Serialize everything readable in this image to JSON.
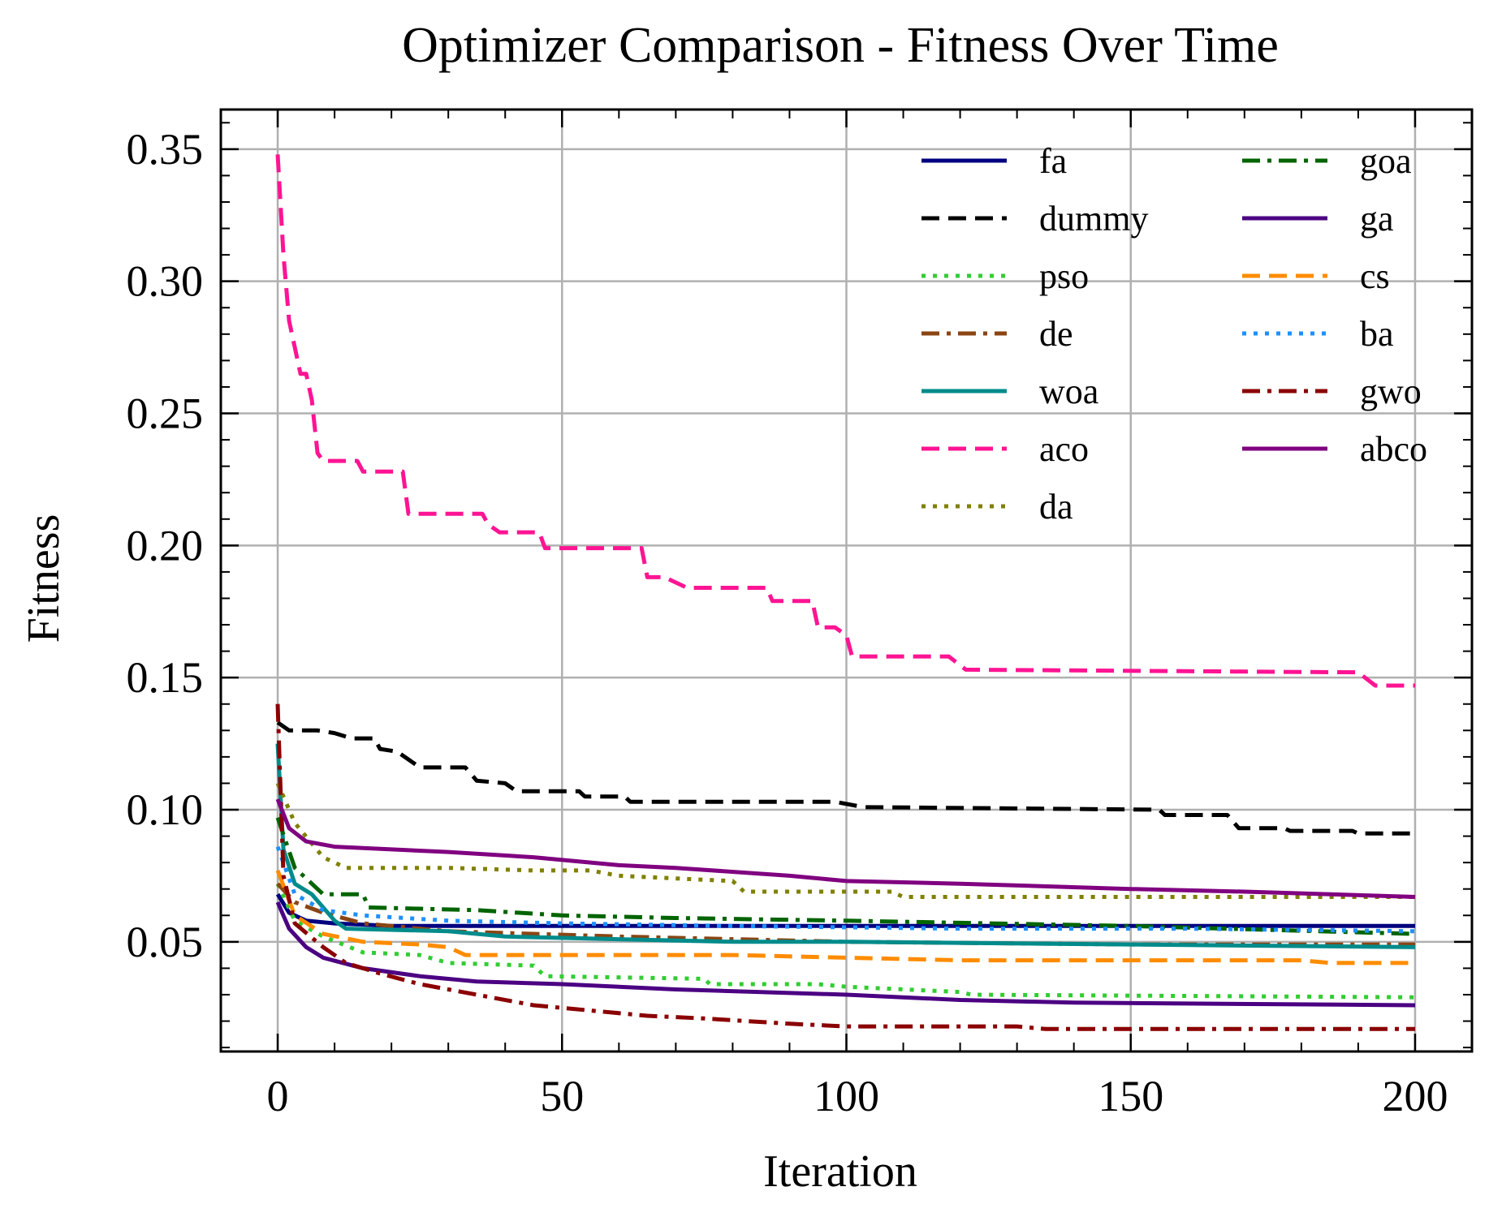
{
  "chart_data": {
    "type": "line",
    "title": "Optimizer Comparison - Fitness Over Time",
    "xlabel": "Iteration",
    "ylabel": "Fitness",
    "xlim": [
      -10,
      210
    ],
    "ylim": [
      0.0085,
      0.365
    ],
    "xticks": [
      0,
      50,
      100,
      150,
      200
    ],
    "xtick_labels": [
      "0",
      "50",
      "100",
      "150",
      "200"
    ],
    "yticks": [
      0.05,
      0.1,
      0.15,
      0.2,
      0.25,
      0.3,
      0.35
    ],
    "ytick_labels": [
      "0.05",
      "0.10",
      "0.15",
      "0.20",
      "0.25",
      "0.30",
      "0.35"
    ],
    "grid": true,
    "legend": {
      "position": "top-right",
      "columns": 2
    },
    "series": [
      {
        "name": "fa",
        "color": "#000080",
        "dash": "solid",
        "points": [
          [
            0,
            0.068
          ],
          [
            2,
            0.061
          ],
          [
            5,
            0.058
          ],
          [
            10,
            0.057
          ],
          [
            20,
            0.056
          ],
          [
            200,
            0.056
          ]
        ]
      },
      {
        "name": "dummy",
        "color": "#000000",
        "dash": "dashed",
        "points": [
          [
            0,
            0.133
          ],
          [
            2,
            0.13
          ],
          [
            7,
            0.13
          ],
          [
            10,
            0.129
          ],
          [
            13,
            0.127
          ],
          [
            17,
            0.127
          ],
          [
            18,
            0.123
          ],
          [
            21,
            0.122
          ],
          [
            23,
            0.119
          ],
          [
            25,
            0.116
          ],
          [
            33,
            0.116
          ],
          [
            35,
            0.111
          ],
          [
            40,
            0.11
          ],
          [
            42,
            0.107
          ],
          [
            53,
            0.107
          ],
          [
            54,
            0.105
          ],
          [
            61,
            0.105
          ],
          [
            62,
            0.103
          ],
          [
            98,
            0.103
          ],
          [
            103,
            0.101
          ],
          [
            155,
            0.1
          ],
          [
            156,
            0.098
          ],
          [
            167,
            0.098
          ],
          [
            169,
            0.093
          ],
          [
            177,
            0.093
          ],
          [
            178,
            0.092
          ],
          [
            189,
            0.092
          ],
          [
            190,
            0.091
          ],
          [
            200,
            0.091
          ]
        ]
      },
      {
        "name": "pso",
        "color": "#32cd32",
        "dash": "dotted",
        "points": [
          [
            0,
            0.072
          ],
          [
            3,
            0.058
          ],
          [
            8,
            0.052
          ],
          [
            15,
            0.046
          ],
          [
            25,
            0.045
          ],
          [
            30,
            0.042
          ],
          [
            45,
            0.041
          ],
          [
            47,
            0.037
          ],
          [
            75,
            0.036
          ],
          [
            76,
            0.034
          ],
          [
            95,
            0.034
          ],
          [
            100,
            0.033
          ],
          [
            120,
            0.031
          ],
          [
            122,
            0.03
          ],
          [
            200,
            0.029
          ]
        ]
      },
      {
        "name": "de",
        "color": "#8b4513",
        "dash": "dashdot",
        "points": [
          [
            0,
            0.072
          ],
          [
            3,
            0.065
          ],
          [
            8,
            0.061
          ],
          [
            15,
            0.057
          ],
          [
            30,
            0.054
          ],
          [
            60,
            0.052
          ],
          [
            100,
            0.05
          ],
          [
            150,
            0.049
          ],
          [
            200,
            0.049
          ]
        ]
      },
      {
        "name": "woa",
        "color": "#008b8b",
        "dash": "solid",
        "points": [
          [
            0,
            0.125
          ],
          [
            1,
            0.085
          ],
          [
            3,
            0.072
          ],
          [
            6,
            0.068
          ],
          [
            10,
            0.058
          ],
          [
            12,
            0.055
          ],
          [
            30,
            0.054
          ],
          [
            40,
            0.052
          ],
          [
            60,
            0.051
          ],
          [
            80,
            0.05
          ],
          [
            100,
            0.05
          ],
          [
            150,
            0.049
          ],
          [
            200,
            0.048
          ]
        ]
      },
      {
        "name": "aco",
        "color": "#ff1493",
        "dash": "dashed",
        "points": [
          [
            0,
            0.348
          ],
          [
            1,
            0.31
          ],
          [
            2,
            0.285
          ],
          [
            4,
            0.265
          ],
          [
            5,
            0.265
          ],
          [
            6,
            0.255
          ],
          [
            7,
            0.235
          ],
          [
            8,
            0.232
          ],
          [
            14,
            0.232
          ],
          [
            15,
            0.228
          ],
          [
            22,
            0.228
          ],
          [
            23,
            0.212
          ],
          [
            36,
            0.212
          ],
          [
            37,
            0.208
          ],
          [
            39,
            0.205
          ],
          [
            46,
            0.205
          ],
          [
            47,
            0.199
          ],
          [
            64,
            0.199
          ],
          [
            65,
            0.188
          ],
          [
            68,
            0.188
          ],
          [
            72,
            0.184
          ],
          [
            86,
            0.184
          ],
          [
            87,
            0.179
          ],
          [
            94,
            0.179
          ],
          [
            95,
            0.169
          ],
          [
            98,
            0.169
          ],
          [
            100,
            0.166
          ],
          [
            101,
            0.158
          ],
          [
            118,
            0.158
          ],
          [
            121,
            0.153
          ],
          [
            190,
            0.152
          ],
          [
            193,
            0.147
          ],
          [
            200,
            0.147
          ]
        ]
      },
      {
        "name": "da",
        "color": "#808000",
        "dash": "dotted",
        "points": [
          [
            0,
            0.11
          ],
          [
            3,
            0.095
          ],
          [
            8,
            0.082
          ],
          [
            12,
            0.078
          ],
          [
            30,
            0.078
          ],
          [
            45,
            0.077
          ],
          [
            55,
            0.077
          ],
          [
            60,
            0.075
          ],
          [
            70,
            0.074
          ],
          [
            80,
            0.073
          ],
          [
            82,
            0.069
          ],
          [
            108,
            0.069
          ],
          [
            110,
            0.067
          ],
          [
            200,
            0.067
          ]
        ]
      },
      {
        "name": "goa",
        "color": "#006400",
        "dash": "dashdot",
        "points": [
          [
            0,
            0.097
          ],
          [
            3,
            0.078
          ],
          [
            8,
            0.068
          ],
          [
            15,
            0.068
          ],
          [
            16,
            0.063
          ],
          [
            35,
            0.062
          ],
          [
            50,
            0.06
          ],
          [
            70,
            0.059
          ],
          [
            100,
            0.058
          ],
          [
            150,
            0.056
          ],
          [
            200,
            0.053
          ]
        ]
      },
      {
        "name": "ga",
        "color": "#4b0082",
        "dash": "solid",
        "points": [
          [
            0,
            0.065
          ],
          [
            2,
            0.055
          ],
          [
            5,
            0.048
          ],
          [
            8,
            0.044
          ],
          [
            15,
            0.04
          ],
          [
            25,
            0.037
          ],
          [
            35,
            0.035
          ],
          [
            50,
            0.034
          ],
          [
            70,
            0.032
          ],
          [
            100,
            0.03
          ],
          [
            120,
            0.028
          ],
          [
            140,
            0.027
          ],
          [
            200,
            0.026
          ]
        ]
      },
      {
        "name": "cs",
        "color": "#ff8c00",
        "dash": "dashed",
        "points": [
          [
            0,
            0.077
          ],
          [
            3,
            0.06
          ],
          [
            8,
            0.053
          ],
          [
            15,
            0.05
          ],
          [
            25,
            0.049
          ],
          [
            30,
            0.048
          ],
          [
            33,
            0.045
          ],
          [
            80,
            0.045
          ],
          [
            100,
            0.044
          ],
          [
            120,
            0.043
          ],
          [
            180,
            0.043
          ],
          [
            185,
            0.042
          ],
          [
            200,
            0.042
          ]
        ]
      },
      {
        "name": "ba",
        "color": "#1e90ff",
        "dash": "dotted",
        "points": [
          [
            0,
            0.086
          ],
          [
            3,
            0.068
          ],
          [
            8,
            0.062
          ],
          [
            15,
            0.06
          ],
          [
            30,
            0.058
          ],
          [
            50,
            0.057
          ],
          [
            80,
            0.056
          ],
          [
            120,
            0.055
          ],
          [
            160,
            0.055
          ],
          [
            200,
            0.054
          ]
        ]
      },
      {
        "name": "gwo",
        "color": "#8b0000",
        "dash": "dashdot",
        "points": [
          [
            0,
            0.14
          ],
          [
            1,
            0.075
          ],
          [
            3,
            0.057
          ],
          [
            8,
            0.048
          ],
          [
            12,
            0.042
          ],
          [
            18,
            0.038
          ],
          [
            25,
            0.034
          ],
          [
            35,
            0.03
          ],
          [
            45,
            0.026
          ],
          [
            55,
            0.024
          ],
          [
            65,
            0.022
          ],
          [
            75,
            0.021
          ],
          [
            90,
            0.019
          ],
          [
            100,
            0.018
          ],
          [
            130,
            0.018
          ],
          [
            135,
            0.017
          ],
          [
            200,
            0.017
          ]
        ]
      },
      {
        "name": "abco",
        "color": "#800080",
        "dash": "solid",
        "points": [
          [
            0,
            0.104
          ],
          [
            2,
            0.093
          ],
          [
            5,
            0.088
          ],
          [
            10,
            0.086
          ],
          [
            20,
            0.085
          ],
          [
            30,
            0.084
          ],
          [
            45,
            0.082
          ],
          [
            60,
            0.079
          ],
          [
            70,
            0.078
          ],
          [
            90,
            0.075
          ],
          [
            100,
            0.073
          ],
          [
            120,
            0.072
          ],
          [
            150,
            0.07
          ],
          [
            170,
            0.069
          ],
          [
            200,
            0.067
          ]
        ]
      }
    ]
  }
}
